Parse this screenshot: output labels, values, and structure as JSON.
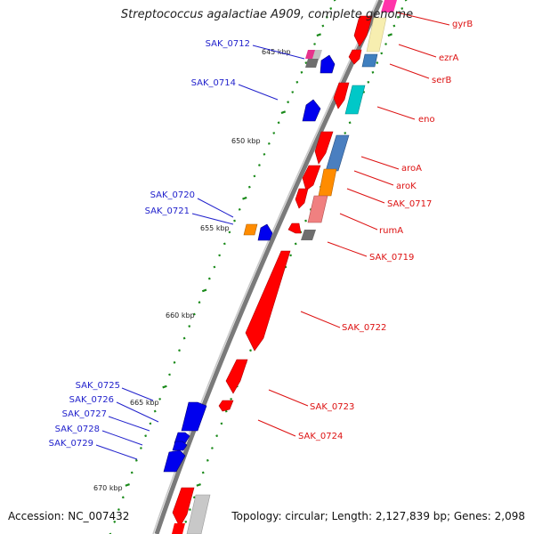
{
  "title": "Streptococcus agalactiae A909, complete genome",
  "footer": {
    "accession": "Accession: NC_007432",
    "topology": "Topology: circular; Length: 2,127,839 bp; Genes: 2,098"
  },
  "colors": {
    "backbone": "#7f7f7f",
    "forward_label": "#2222cc",
    "reverse_label": "#dd1111",
    "tick": "#1a8a1a"
  },
  "kbp_labels": [
    "645 kbp",
    "650 kbp",
    "655 kbp",
    "660 kbp",
    "665 kbp",
    "670 kbp"
  ],
  "forward_genes": [
    "SAK_0712",
    "SAK_0714",
    "SAK_0720",
    "SAK_0721",
    "SAK_0725",
    "SAK_0726",
    "SAK_0727",
    "SAK_0728",
    "SAK_0729"
  ],
  "reverse_genes": [
    "gyrB",
    "ezrA",
    "serB",
    "eno",
    "aroA",
    "aroK",
    "SAK_0717",
    "rumA",
    "SAK_0719",
    "SAK_0722",
    "SAK_0723",
    "SAK_0724"
  ]
}
